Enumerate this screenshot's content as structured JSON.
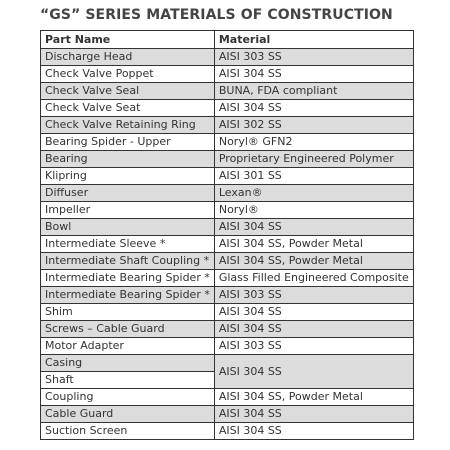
{
  "title": "“GS” SERIES MATERIALS OF CONSTRUCTION",
  "table": {
    "header": [
      "Part Name",
      "Material"
    ],
    "rows": [
      {
        "parts": [
          "Discharge Head"
        ],
        "material": "AISI 303 SS"
      },
      {
        "parts": [
          "Check Valve Poppet"
        ],
        "material": "AISI 304 SS"
      },
      {
        "parts": [
          "Check Valve Seal"
        ],
        "material": "BUNA, FDA compliant"
      },
      {
        "parts": [
          "Check Valve Seat"
        ],
        "material": "AISI 304 SS"
      },
      {
        "parts": [
          "Check Valve Retaining Ring"
        ],
        "material": "AISI 302 SS"
      },
      {
        "parts": [
          "Bearing Spider - Upper"
        ],
        "material": "Noryl® GFN2"
      },
      {
        "parts": [
          "Bearing"
        ],
        "material": "Proprietary Engineered Polymer"
      },
      {
        "parts": [
          "Klipring"
        ],
        "material": "AISI 301 SS"
      },
      {
        "parts": [
          "Diffuser"
        ],
        "material": "Lexan®"
      },
      {
        "parts": [
          "Impeller"
        ],
        "material": "Noryl®"
      },
      {
        "parts": [
          "Bowl"
        ],
        "material": "AISI 304 SS"
      },
      {
        "parts": [
          "Intermediate Sleeve *"
        ],
        "material": "AISI 304 SS, Powder Metal"
      },
      {
        "parts": [
          "Intermediate Shaft Coupling *"
        ],
        "material": "AISI 304 SS, Powder Metal"
      },
      {
        "parts": [
          "Intermediate Bearing Spider *"
        ],
        "material": "Glass Filled Engineered Composite"
      },
      {
        "parts": [
          "Intermediate Bearing Spider *"
        ],
        "material": "AISI 303 SS"
      },
      {
        "parts": [
          "Shim"
        ],
        "material": "AISI 304 SS"
      },
      {
        "parts": [
          "Screws – Cable Guard"
        ],
        "material": "AISI 304 SS"
      },
      {
        "parts": [
          "Motor Adapter"
        ],
        "material": "AISI 303 SS"
      },
      {
        "parts": [
          "Casing",
          "Shaft"
        ],
        "material": "AISI 304 SS"
      },
      {
        "parts": [
          "Coupling"
        ],
        "material": "AISI 304 SS, Powder Metal"
      },
      {
        "parts": [
          "Cable Guard"
        ],
        "material": "AISI 304 SS"
      },
      {
        "parts": [
          "Suction Screen"
        ],
        "material": "AISI 304 SS"
      }
    ]
  }
}
